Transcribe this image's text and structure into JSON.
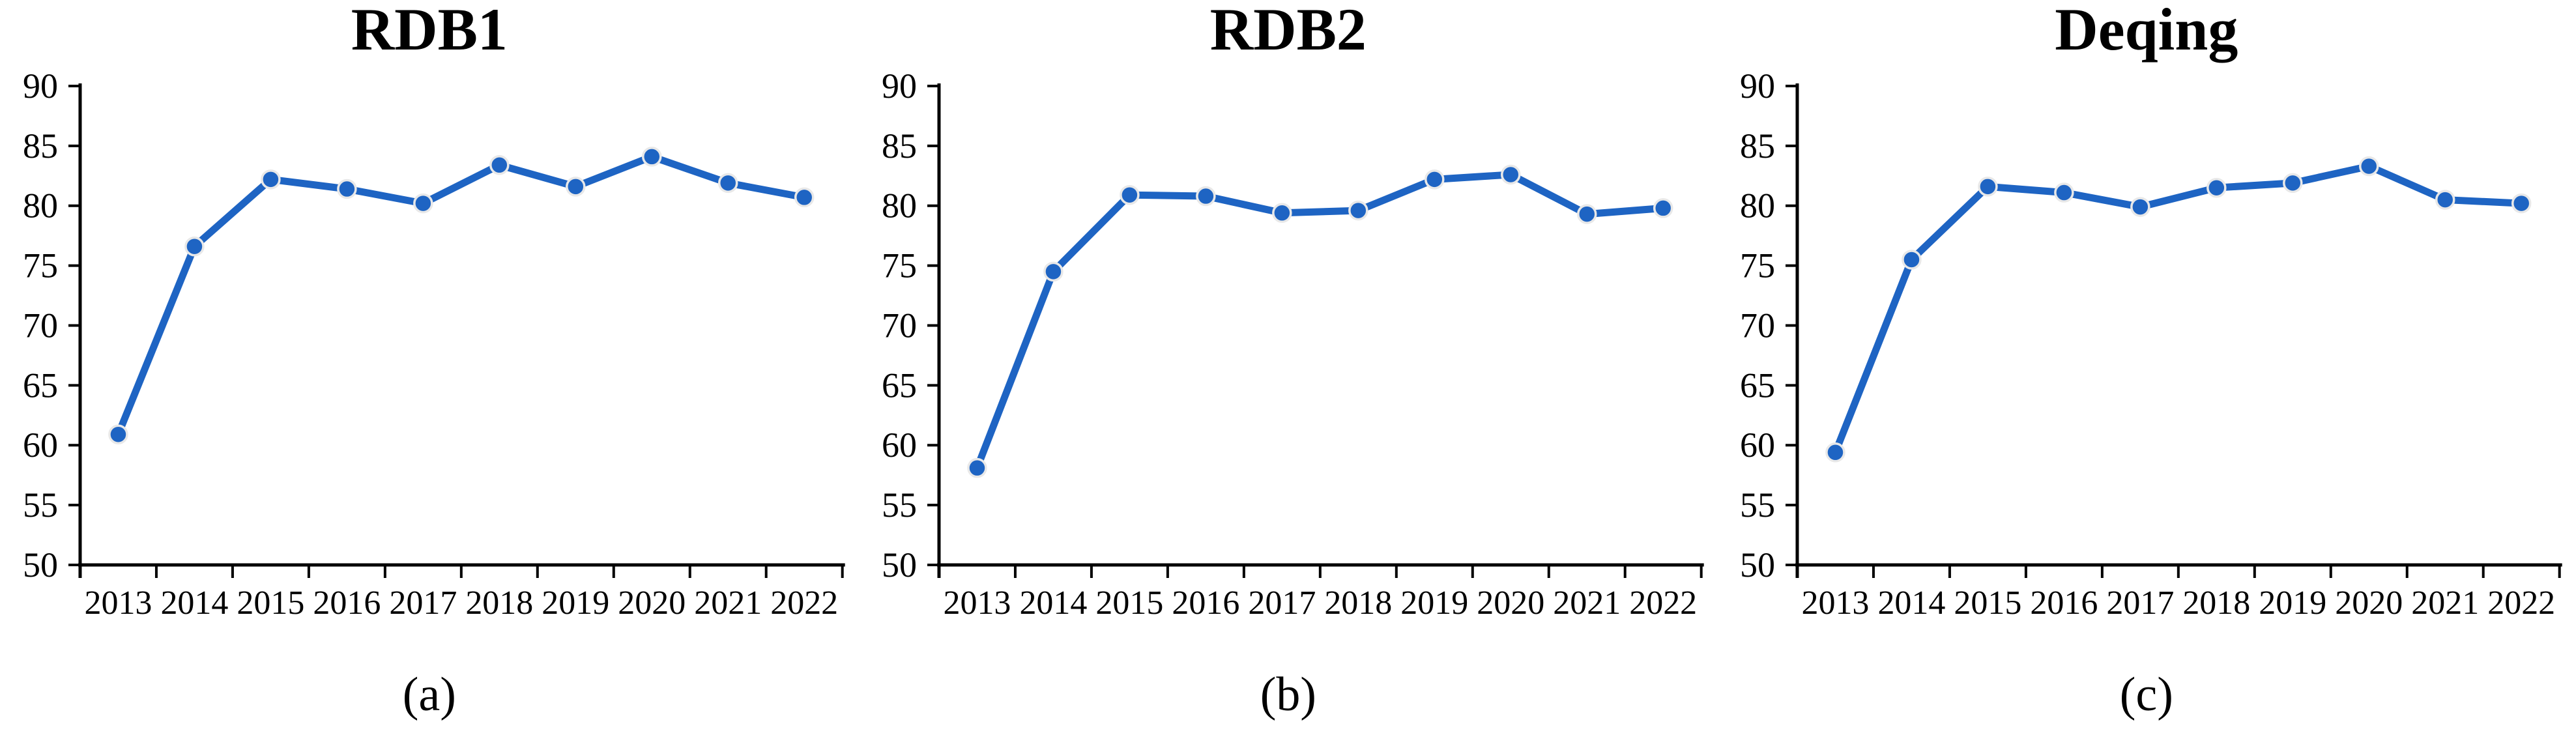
{
  "chart_data": [
    {
      "type": "line",
      "title": "RDB1",
      "caption": "(a)",
      "x": [
        "2013",
        "2014",
        "2015",
        "2016",
        "2017",
        "2018",
        "2019",
        "2020",
        "2021",
        "2022"
      ],
      "series": [
        {
          "name": "RDB1",
          "values": [
            60.9,
            76.6,
            82.2,
            81.4,
            80.2,
            83.4,
            81.6,
            84.1,
            81.9,
            80.7
          ]
        }
      ],
      "xlabel": "",
      "ylabel": "",
      "ylim": [
        50,
        90
      ],
      "ytick_step": 5,
      "grid": false,
      "legend": "none"
    },
    {
      "type": "line",
      "title": "RDB2",
      "caption": "(b)",
      "x": [
        "2013",
        "2014",
        "2015",
        "2016",
        "2017",
        "2018",
        "2019",
        "2020",
        "2021",
        "2022"
      ],
      "series": [
        {
          "name": "RDB2",
          "values": [
            58.1,
            74.5,
            80.9,
            80.8,
            79.4,
            79.6,
            82.2,
            82.6,
            79.3,
            79.8
          ]
        }
      ],
      "xlabel": "",
      "ylabel": "",
      "ylim": [
        50,
        90
      ],
      "ytick_step": 5,
      "grid": false,
      "legend": "none"
    },
    {
      "type": "line",
      "title": "Deqing",
      "caption": "(c)",
      "x": [
        "2013",
        "2014",
        "2015",
        "2016",
        "2017",
        "2018",
        "2019",
        "2020",
        "2021",
        "2022"
      ],
      "series": [
        {
          "name": "Deqing",
          "values": [
            59.4,
            75.5,
            81.6,
            81.1,
            79.9,
            81.5,
            81.9,
            83.3,
            80.5,
            80.2
          ]
        }
      ],
      "xlabel": "",
      "ylabel": "",
      "ylim": [
        50,
        90
      ],
      "ytick_step": 5,
      "grid": false,
      "legend": "none"
    }
  ],
  "styles": {
    "line_color": "#1e64c3",
    "marker_fill": "#1e64c3",
    "marker_ring": "#e8e8e8",
    "axis_color": "#000000",
    "text_color": "#000000",
    "background": "#ffffff"
  }
}
